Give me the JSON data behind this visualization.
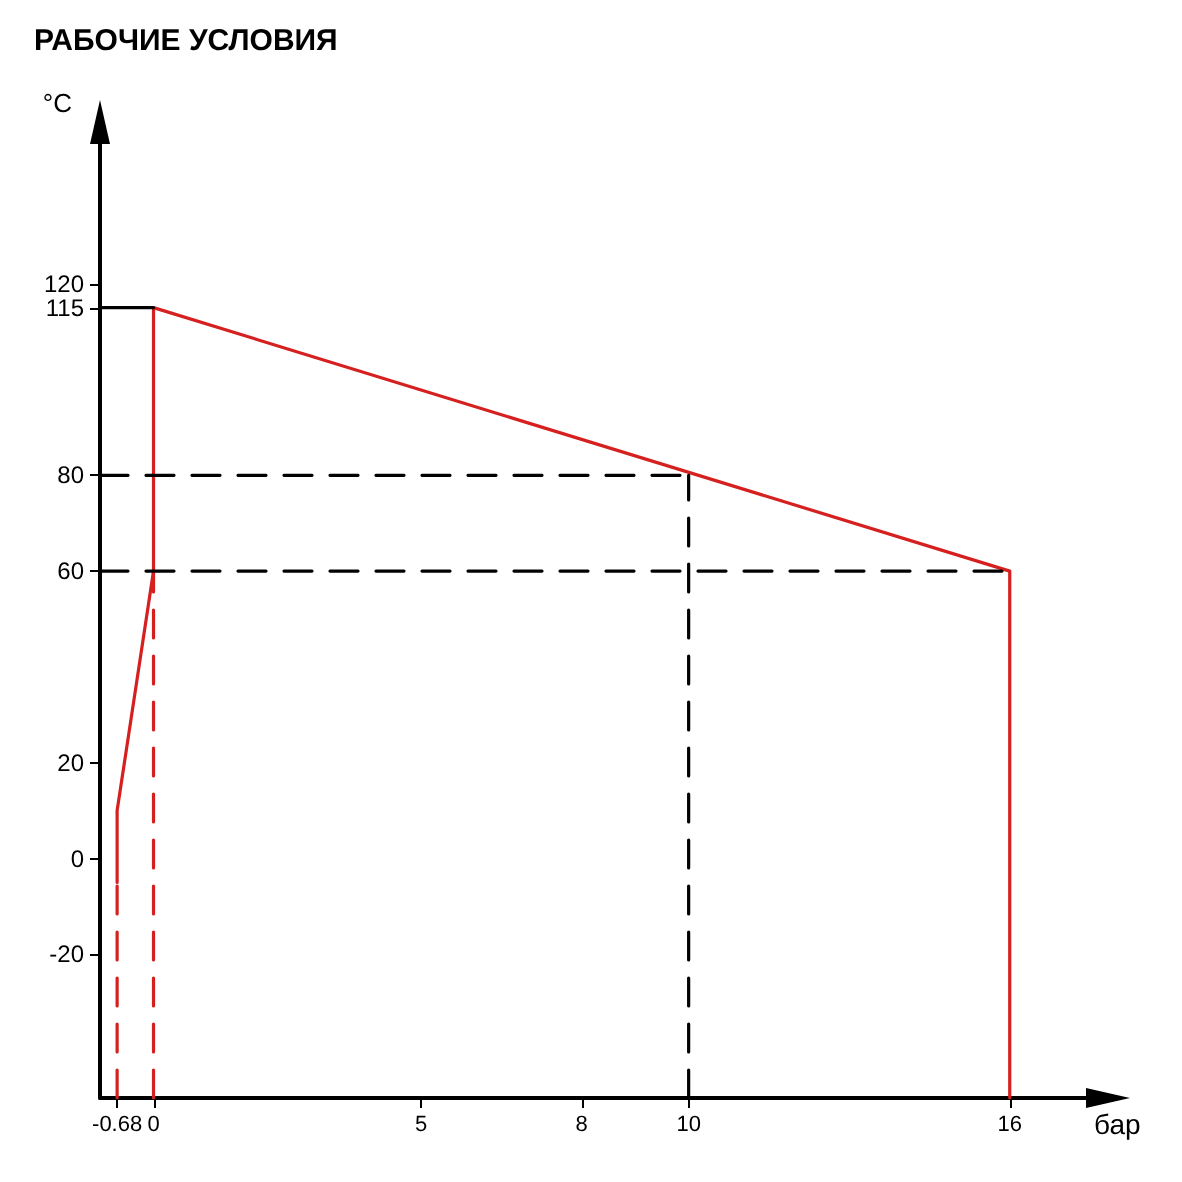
{
  "chart_data": {
    "type": "line",
    "title": "РАБОЧИЕ УСЛОВИЯ",
    "xlabel": "бар",
    "ylabel": "°C",
    "xlim": [
      -1,
      17.5
    ],
    "ylim": [
      -50,
      150
    ],
    "xticks": [
      -0.68,
      0,
      5,
      8,
      10,
      16
    ],
    "yticks": [
      -20,
      0,
      20,
      60,
      80,
      115,
      120
    ],
    "grid": false,
    "marker": "none",
    "series": [
      {
        "color": "#d62020",
        "line_style": "solid",
        "x": [
          -0.68,
          -0.68,
          0,
          0,
          16,
          16
        ],
        "values": [
          -5,
          10,
          60,
          115,
          60,
          -50
        ]
      },
      {
        "color": "#d62020",
        "line_style": "dashed",
        "x": [
          -0.68,
          -0.68
        ],
        "values": [
          -50,
          -5
        ]
      },
      {
        "color": "#d62020",
        "line_style": "dashed",
        "x": [
          0,
          0
        ],
        "values": [
          -50,
          60
        ]
      },
      {
        "color": "#000000",
        "line_style": "solid",
        "x": [
          -1,
          0
        ],
        "values": [
          115,
          115
        ]
      },
      {
        "color": "#000000",
        "line_style": "dashed",
        "x": [
          -1,
          10
        ],
        "values": [
          80,
          80
        ]
      },
      {
        "color": "#000000",
        "line_style": "dashed",
        "x": [
          -1,
          16
        ],
        "values": [
          60,
          60
        ]
      },
      {
        "color": "#000000",
        "line_style": "dashed",
        "x": [
          10,
          10
        ],
        "values": [
          -50,
          80
        ]
      }
    ]
  }
}
